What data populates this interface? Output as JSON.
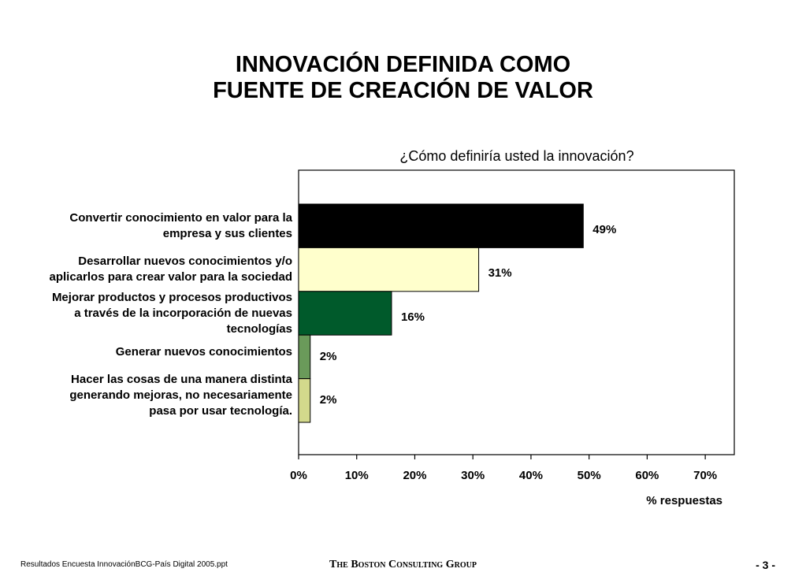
{
  "chart_data": {
    "type": "hbar",
    "title": "INNOVACIÓN DEFINIDA COMO\nFUENTE DE CREACIÓN DE VALOR",
    "subtitle": "¿Cómo definiría usted la innovación?",
    "x_label": "% respuestas",
    "categories": [
      "Convertir conocimiento en valor para la\nempresa y sus clientes",
      "Desarrollar nuevos conocimientos y/o\naplicarlos para crear valor para la sociedad",
      "Mejorar productos y procesos productivos\na través de la incorporación de nuevas\ntecnologías",
      "Generar nuevos conocimientos",
      "Hacer las cosas de una manera distinta\ngenerando mejoras, no necesariamente\npasa por usar tecnología."
    ],
    "values": [
      49,
      31,
      16,
      2,
      2
    ],
    "value_labels": [
      "49%",
      "31%",
      "16%",
      "2%",
      "2%"
    ],
    "colors": [
      "#000000",
      "#ffffcc",
      "#005a2b",
      "#6a9a5a",
      "#d3d98c"
    ],
    "xlim": [
      0,
      75
    ],
    "xticks": [
      {
        "value": 0,
        "label": "0%"
      },
      {
        "value": 10,
        "label": "10%"
      },
      {
        "value": 20,
        "label": "20%"
      },
      {
        "value": 30,
        "label": "30%"
      },
      {
        "value": 40,
        "label": "40%"
      },
      {
        "value": 50,
        "label": "50%"
      },
      {
        "value": 60,
        "label": "60%"
      },
      {
        "value": 70,
        "label": "70%"
      }
    ],
    "grid": false
  },
  "footer": {
    "file": "Resultados Encuesta InnovaciónBCG-País Digital 2005.ppt",
    "company": "The Boston Consulting Group",
    "page": "- 3 -"
  }
}
